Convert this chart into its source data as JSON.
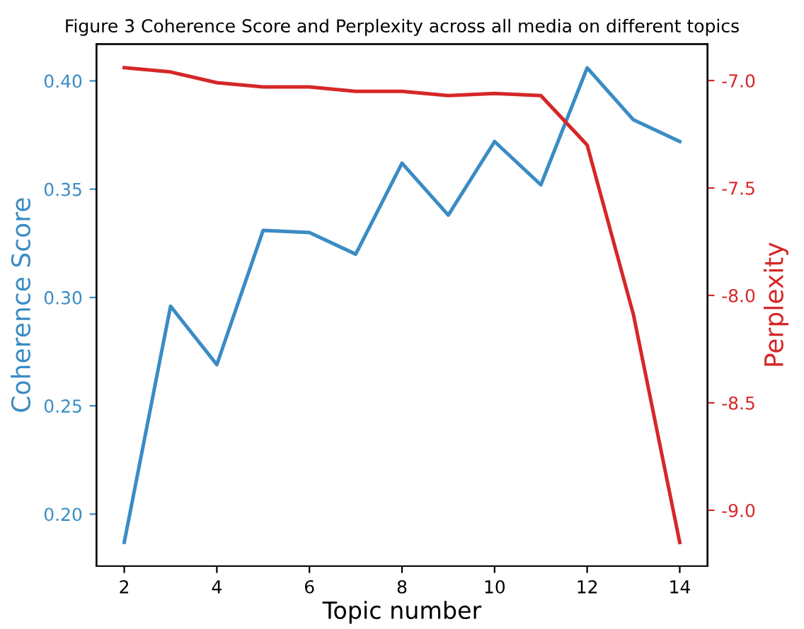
{
  "chart_data": {
    "type": "line",
    "title": "Figure 3 Coherence Score and Perplexity across all media on different topics",
    "xlabel": "Topic number",
    "ylabel": "Coherence Score",
    "y2label": "Perplexity",
    "x": [
      2,
      3,
      4,
      5,
      6,
      7,
      8,
      9,
      10,
      11,
      12,
      13,
      14
    ],
    "series": [
      {
        "color": "#3a8cc4",
        "values": [
          0.187,
          0.296,
          0.269,
          0.331,
          0.33,
          0.32,
          0.362,
          0.338,
          0.372,
          0.352,
          0.406,
          0.382,
          0.372
        ]
      },
      {
        "color": "#d62728",
        "axis": "y2",
        "values": [
          -6.94,
          -6.96,
          -7.01,
          -7.03,
          -7.03,
          -7.05,
          -7.05,
          -7.07,
          -7.06,
          -7.07,
          -7.3,
          -8.09,
          -9.15
        ]
      }
    ],
    "xlim": [
      1.4,
      14.6
    ],
    "xticks": [
      2,
      4,
      6,
      8,
      10,
      12,
      14
    ],
    "ylim": [
      0.176,
      0.417
    ],
    "yticks": [
      {
        "value": 0.2,
        "label": "0.20"
      },
      {
        "value": 0.25,
        "label": "0.25"
      },
      {
        "value": 0.3,
        "label": "0.30"
      },
      {
        "value": 0.35,
        "label": "0.35"
      },
      {
        "value": 0.4,
        "label": "0.40"
      }
    ],
    "y2lim": [
      -9.26,
      -6.83
    ],
    "y2ticks": [
      {
        "value": -9.0,
        "label": "-9.0"
      },
      {
        "value": -8.5,
        "label": "-8.5"
      },
      {
        "value": -8.0,
        "label": "-8.0"
      },
      {
        "value": -7.5,
        "label": "-7.5"
      },
      {
        "value": -7.0,
        "label": "-7.0"
      }
    ],
    "grid": false
  }
}
